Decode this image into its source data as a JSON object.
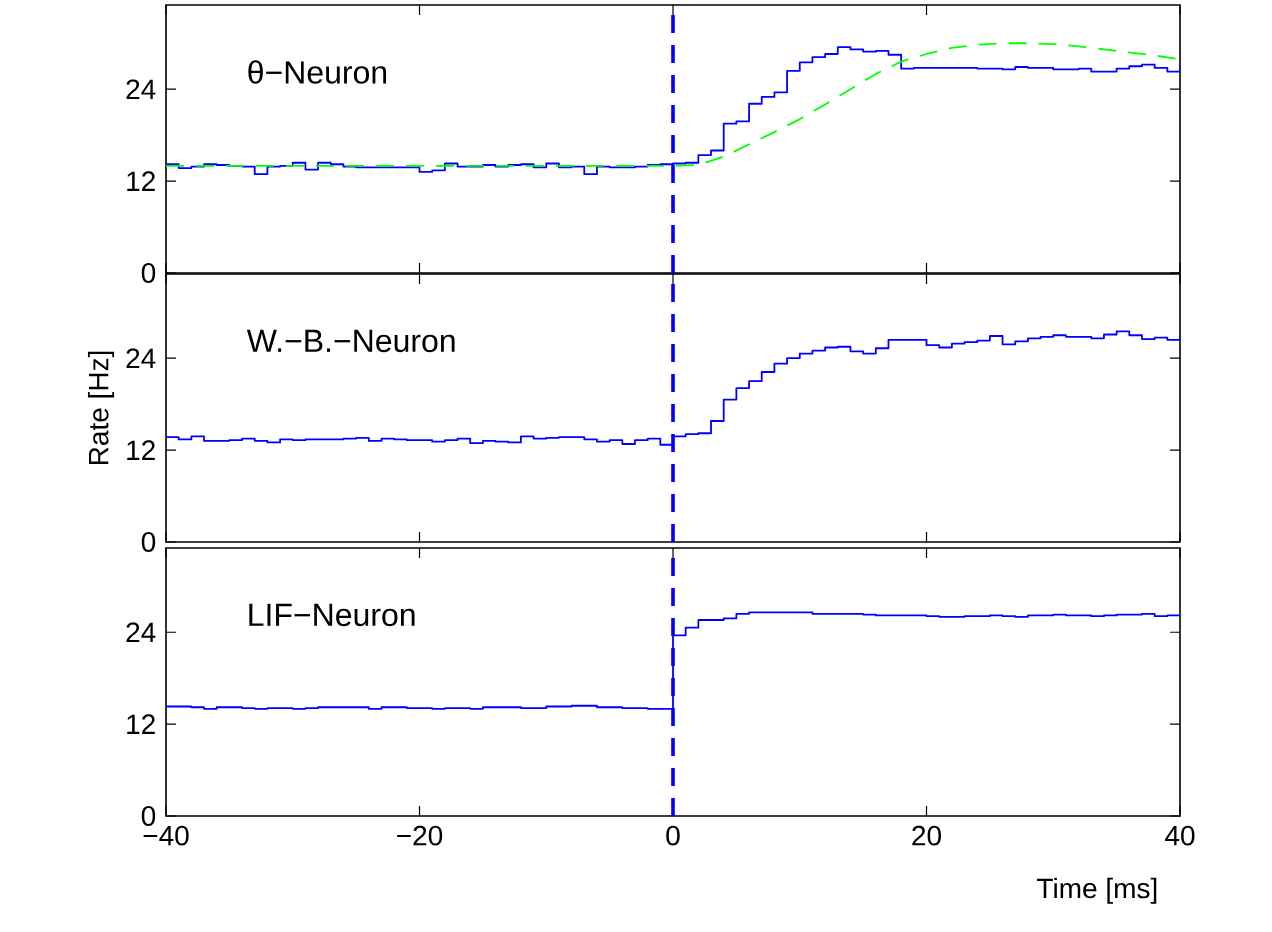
{
  "chart_data": [
    {
      "type": "step",
      "title": "θ−Neuron",
      "xlim": [
        -40,
        40
      ],
      "ylim": [
        0,
        35
      ],
      "xticks": [
        {
          "value": -40,
          "label": null
        },
        {
          "value": -20,
          "label": null
        },
        {
          "value": 0,
          "label": null
        },
        {
          "value": 20,
          "label": null
        },
        {
          "value": 40,
          "label": null
        }
      ],
      "yticks": [
        0,
        12,
        24
      ],
      "tick_labels": "y",
      "ref_lines": [
        {
          "axis": "x",
          "value": 0,
          "label": null,
          "color": "#0000ff",
          "line_style": "dashed"
        }
      ],
      "series": [
        {
          "color": "#0000ff",
          "x": [
            -40,
            -39,
            -38,
            -37,
            -36,
            -35,
            -34,
            -33,
            -32,
            -31,
            -30,
            -29,
            -28,
            -27,
            -26,
            -25,
            -24,
            -23,
            -22,
            -21,
            -20,
            -19,
            -18,
            -17,
            -16,
            -15,
            -14,
            -13,
            -12,
            -11,
            -10,
            -9,
            -8,
            -7,
            -6,
            -5,
            -4,
            -3,
            -2,
            -1,
            0,
            1,
            2,
            3,
            4,
            5,
            6,
            7,
            8,
            9,
            10,
            11,
            12,
            13,
            14,
            15,
            16,
            17,
            18,
            19,
            20,
            21,
            22,
            23,
            24,
            25,
            26,
            27,
            28,
            29,
            30,
            31,
            32,
            33,
            34,
            35,
            36,
            37,
            38,
            39,
            40
          ],
          "values": [
            14.2,
            13.7,
            13.9,
            14.2,
            14.1,
            14.0,
            13.9,
            12.9,
            13.9,
            14.0,
            14.4,
            13.5,
            14.4,
            14.2,
            13.9,
            13.8,
            13.8,
            13.8,
            13.8,
            13.8,
            13.2,
            13.4,
            14.3,
            13.9,
            13.9,
            14.1,
            13.9,
            14.1,
            14.2,
            13.8,
            14.3,
            13.8,
            13.9,
            12.9,
            13.9,
            13.8,
            13.8,
            13.9,
            14.1,
            14.2,
            14.3,
            14.4,
            15.4,
            16.0,
            19.5,
            19.8,
            22.1,
            23.0,
            23.6,
            26.4,
            27.5,
            28.2,
            28.6,
            29.5,
            29.2,
            28.9,
            29.0,
            28.5,
            26.7,
            26.8,
            26.8,
            26.8,
            26.8,
            26.8,
            26.7,
            26.7,
            26.6,
            26.9,
            26.8,
            26.8,
            26.6,
            26.6,
            26.7,
            26.3,
            26.3,
            26.7,
            27.0,
            27.2,
            26.8,
            26.3,
            27.3
          ]
        },
        {
          "type": "line",
          "color": "#00ff00",
          "line_style": "dashed",
          "x": [
            -40,
            -20,
            0,
            2,
            4,
            6,
            8,
            10,
            12,
            14,
            16,
            18,
            20,
            22,
            24,
            26,
            28,
            30,
            32,
            34,
            36,
            38,
            40
          ],
          "values": [
            14,
            14,
            14,
            14.1,
            15.2,
            16.8,
            18.4,
            20.1,
            22,
            24,
            26,
            27.6,
            28.6,
            29.4,
            29.8,
            30,
            30,
            29.9,
            29.6,
            29.2,
            28.8,
            28.4,
            27.9
          ]
        }
      ]
    },
    {
      "type": "step",
      "title": "W.−B.−Neuron",
      "ylabel": "Rate [Hz]",
      "xlim": [
        -40,
        40
      ],
      "ylim": [
        0,
        35
      ],
      "xticks": [
        {
          "value": -40,
          "label": null
        },
        {
          "value": -20,
          "label": null
        },
        {
          "value": 0,
          "label": null
        },
        {
          "value": 20,
          "label": null
        },
        {
          "value": 40,
          "label": null
        }
      ],
      "yticks": [
        0,
        12,
        24
      ],
      "tick_labels": "y",
      "ref_lines": [
        {
          "axis": "x",
          "value": 0,
          "label": null,
          "color": "#0000ff",
          "line_style": "dashed"
        }
      ],
      "series": [
        {
          "color": "#0000ff",
          "x": [
            -40,
            -39,
            -38,
            -37,
            -36,
            -35,
            -34,
            -33,
            -32,
            -31,
            -30,
            -29,
            -28,
            -27,
            -26,
            -25,
            -24,
            -23,
            -22,
            -21,
            -20,
            -19,
            -18,
            -17,
            -16,
            -15,
            -14,
            -13,
            -12,
            -11,
            -10,
            -9,
            -8,
            -7,
            -6,
            -5,
            -4,
            -3,
            -2,
            -1,
            0,
            1,
            2,
            3,
            4,
            5,
            6,
            7,
            8,
            9,
            10,
            11,
            12,
            13,
            14,
            15,
            16,
            17,
            18,
            19,
            20,
            21,
            22,
            23,
            24,
            25,
            26,
            27,
            28,
            29,
            30,
            31,
            32,
            33,
            34,
            35,
            36,
            37,
            38,
            39,
            40
          ],
          "values": [
            13.7,
            13.4,
            13.8,
            13.2,
            13.2,
            13.3,
            13.5,
            13.2,
            13.0,
            13.4,
            13.3,
            13.4,
            13.4,
            13.4,
            13.5,
            13.6,
            13.2,
            13.5,
            13.4,
            13.3,
            13.3,
            13.1,
            13.3,
            13.5,
            12.9,
            13.2,
            13.1,
            13.0,
            13.8,
            13.5,
            13.6,
            13.7,
            13.7,
            13.4,
            13.1,
            13.3,
            12.8,
            13.3,
            13.5,
            12.7,
            13.8,
            14.1,
            14.2,
            15.8,
            18.6,
            20.1,
            21.0,
            22.2,
            23.3,
            24.0,
            24.6,
            25.0,
            25.4,
            25.5,
            24.9,
            24.6,
            25.3,
            26.4,
            26.4,
            26.4,
            25.7,
            25.4,
            25.9,
            26.1,
            26.3,
            26.9,
            25.8,
            26.2,
            26.6,
            26.8,
            27.0,
            26.8,
            26.8,
            26.6,
            27.1,
            27.5,
            27.0,
            26.5,
            26.7,
            26.4,
            26.9
          ]
        }
      ]
    },
    {
      "type": "step",
      "title": "LIF−Neuron",
      "xlabel": "Time [ms]",
      "xlim": [
        -40,
        40
      ],
      "ylim": [
        0,
        35
      ],
      "xticks": [
        {
          "value": -40,
          "label": "−40"
        },
        {
          "value": -20,
          "label": "−20"
        },
        0,
        20,
        40
      ],
      "yticks": [
        0,
        12,
        24
      ],
      "ref_lines": [
        {
          "axis": "x",
          "value": 0,
          "label": null,
          "color": "#0000ff",
          "line_style": "dashed"
        }
      ],
      "series": [
        {
          "color": "#0000ff",
          "x": [
            -40,
            -39,
            -38,
            -37,
            -36,
            -35,
            -34,
            -33,
            -32,
            -31,
            -30,
            -29,
            -28,
            -27,
            -26,
            -25,
            -24,
            -23,
            -22,
            -21,
            -20,
            -19,
            -18,
            -17,
            -16,
            -15,
            -14,
            -13,
            -12,
            -11,
            -10,
            -9,
            -8,
            -7,
            -6,
            -5,
            -4,
            -3,
            -2,
            -1,
            0,
            1,
            2,
            3,
            4,
            5,
            6,
            7,
            8,
            9,
            10,
            11,
            12,
            13,
            14,
            15,
            16,
            17,
            18,
            19,
            20,
            21,
            22,
            23,
            24,
            25,
            26,
            27,
            28,
            29,
            30,
            31,
            32,
            33,
            34,
            35,
            36,
            37,
            38,
            39,
            40
          ],
          "values": [
            14.3,
            14.3,
            14.2,
            14.0,
            14.2,
            14.2,
            14.1,
            14.0,
            14.1,
            14.1,
            14.0,
            14.1,
            14.2,
            14.2,
            14.2,
            14.2,
            14.0,
            14.2,
            14.2,
            14.1,
            14.1,
            14.0,
            14.1,
            14.1,
            14.0,
            14.2,
            14.2,
            14.2,
            14.1,
            14.1,
            14.3,
            14.3,
            14.4,
            14.4,
            14.2,
            14.2,
            14.1,
            14.1,
            14.0,
            14.0,
            23.6,
            24.6,
            25.6,
            25.6,
            25.8,
            26.4,
            26.6,
            26.6,
            26.6,
            26.6,
            26.6,
            26.4,
            26.4,
            26.4,
            26.4,
            26.3,
            26.2,
            26.2,
            26.2,
            26.2,
            26.1,
            26.0,
            26.0,
            26.1,
            26.1,
            26.2,
            26.1,
            26.0,
            26.2,
            26.2,
            26.3,
            26.2,
            26.2,
            26.1,
            26.2,
            26.3,
            26.3,
            26.4,
            26.1,
            26.2,
            26.2
          ]
        }
      ]
    }
  ]
}
